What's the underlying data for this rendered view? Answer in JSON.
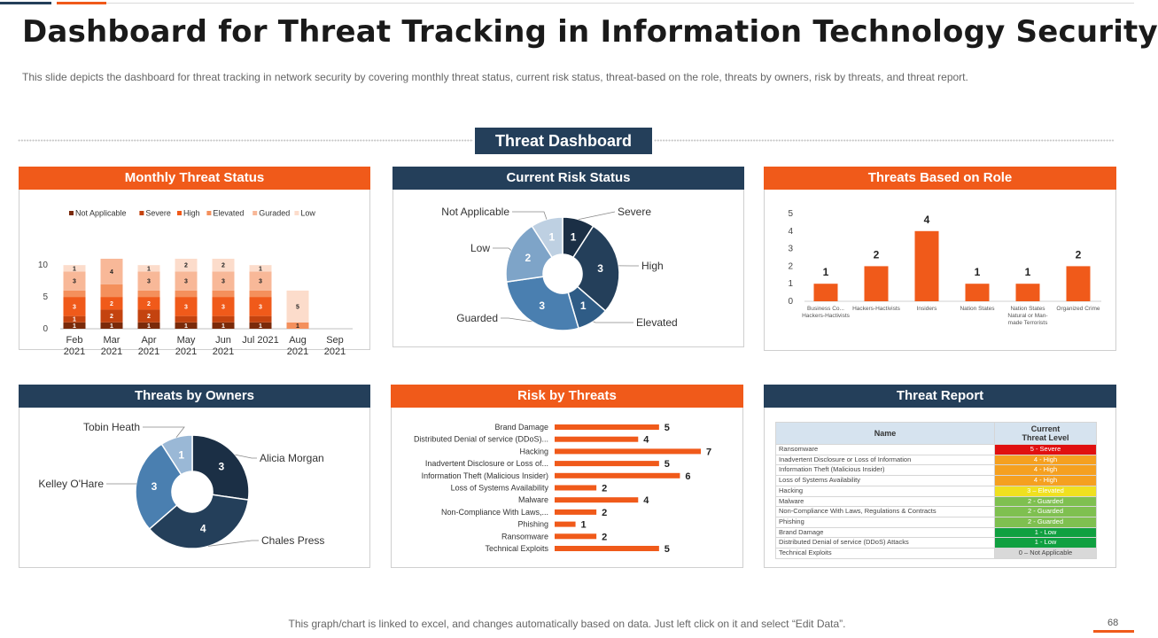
{
  "title": "Dashboard for Threat Tracking in Information Technology Security",
  "subtitle": "This slide depicts the dashboard  for threat tracking in network  security by covering  monthly threat status, current  risk status, threat-based  on the role, threats by owners, risk by threats, and threat report.",
  "dashboard_title": "Threat Dashboard",
  "footer": "This graph/chart is linked to excel,  and changes automatically based on data. Just left click on it and select “Edit Data”.",
  "page_number": "68",
  "colors": {
    "orange": "#f05a1a",
    "navy": "#243f5a"
  },
  "panels": {
    "monthly": "Monthly Threat Status",
    "risk": "Current Risk Status",
    "role": "Threats Based on Role",
    "owners": "Threats by Owners",
    "by_threats": "Risk by Threats",
    "report": "Threat Report"
  },
  "chart_data": [
    {
      "id": "monthly",
      "type": "bar",
      "stacked": true,
      "title": "Monthly Threat Status",
      "categories": [
        [
          "Feb",
          "2021"
        ],
        [
          "Mar",
          "2021"
        ],
        [
          "Apr",
          "2021"
        ],
        [
          "May",
          "2021"
        ],
        [
          "Jun",
          "2021"
        ],
        [
          "Jul 2021",
          ""
        ],
        [
          "Aug",
          "2021"
        ],
        [
          "Sep",
          "2021"
        ]
      ],
      "ylim": [
        0,
        11
      ],
      "yticks": [
        0,
        5,
        10
      ],
      "legend_position": "top",
      "series": [
        {
          "name": "Not Applicable",
          "color": "#7a2a0a",
          "values": [
            1,
            1,
            1,
            1,
            1,
            1,
            0,
            0
          ]
        },
        {
          "name": "Severe",
          "color": "#c4430f",
          "values": [
            1,
            2,
            2,
            1,
            1,
            1,
            0,
            0
          ]
        },
        {
          "name": "High",
          "color": "#f05a1a",
          "values": [
            3,
            2,
            2,
            3,
            3,
            3,
            0,
            0
          ]
        },
        {
          "name": "Elevated",
          "color": "#f4905c",
          "values": [
            1,
            2,
            1,
            1,
            1,
            1,
            1,
            0
          ]
        },
        {
          "name": "Guraded",
          "color": "#f8b898",
          "values": [
            3,
            4,
            3,
            3,
            3,
            3,
            0,
            0
          ]
        },
        {
          "name": "Low",
          "color": "#fcdccb",
          "values": [
            1,
            0,
            1,
            2,
            2,
            1,
            5,
            0
          ]
        }
      ],
      "labels": [
        [
          "1",
          "1",
          "3",
          "",
          "3",
          "1"
        ],
        [
          "1",
          "2",
          "2",
          "",
          "4",
          ""
        ],
        [
          "1",
          "2",
          "2",
          "",
          "3",
          "1"
        ],
        [
          "1",
          "",
          "3",
          "",
          "3",
          "2"
        ],
        [
          "1",
          "",
          "3",
          "",
          "3",
          "2"
        ],
        [
          "1",
          "",
          "3",
          "",
          "3",
          "1"
        ],
        [
          "",
          "",
          "",
          "1",
          "",
          "5"
        ],
        [
          "",
          "",
          "",
          "",
          "",
          ""
        ]
      ]
    },
    {
      "id": "risk",
      "type": "pie",
      "donut": true,
      "title": "Current Risk Status",
      "slices": [
        {
          "name": "Severe",
          "value": 1,
          "color": "#1b2f45",
          "label_pos": "right"
        },
        {
          "name": "High",
          "value": 3,
          "color": "#243f5a",
          "label_pos": "right"
        },
        {
          "name": "Elevated",
          "value": 1,
          "color": "#2f5c86",
          "label_pos": "right"
        },
        {
          "name": "Guarded",
          "value": 3,
          "color": "#4a7fb0",
          "label_pos": "left"
        },
        {
          "name": "Low",
          "value": 2,
          "color": "#7ea4c8",
          "label_pos": "left"
        },
        {
          "name": "Not Applicable",
          "value": 1,
          "color": "#bed0e2",
          "label_pos": "left"
        }
      ]
    },
    {
      "id": "role",
      "type": "bar",
      "title": "Threats Based on Role",
      "categories": [
        [
          "Business Co...",
          "Hackers-Hactivists"
        ],
        [
          "Hackers-Hactivists"
        ],
        [
          "Insiders"
        ],
        [
          "Nation States"
        ],
        [
          "Nation States",
          "Natural or Man-",
          "made Terrorists"
        ],
        [
          "Organized Crime"
        ]
      ],
      "values": [
        1,
        2,
        4,
        1,
        1,
        2
      ],
      "ylim": [
        0,
        5
      ],
      "yticks": [
        0,
        1,
        2,
        3,
        4,
        5
      ],
      "color": "#f05a1a"
    },
    {
      "id": "owners",
      "type": "pie",
      "donut": true,
      "title": "Threats by Owners",
      "slices": [
        {
          "name": "Alicia Morgan",
          "value": 3,
          "color": "#1b2f45"
        },
        {
          "name": "Chales Press",
          "value": 4,
          "color": "#243f5a"
        },
        {
          "name": "Kelley O'Hare",
          "value": 3,
          "color": "#4a7fb0"
        },
        {
          "name": "Tobin Heath",
          "value": 1,
          "color": "#9ab8d6"
        }
      ]
    },
    {
      "id": "by_threats",
      "type": "bar",
      "orientation": "horizontal",
      "title": "Risk by Threats",
      "categories": [
        "Brand Damage",
        "Distributed Denial of service (DDoS)...",
        "Hacking",
        "Inadvertent Disclosure or Loss of...",
        "Information Theft (Malicious Insider)",
        "Loss of Systems Availability",
        "Malware",
        "Non-Compliance With Laws,...",
        "Phishing",
        "Ransomware",
        "Technical Exploits"
      ],
      "values": [
        5,
        4,
        7,
        5,
        6,
        2,
        4,
        2,
        1,
        2,
        5
      ],
      "xlim": [
        0,
        7
      ],
      "color": "#f05a1a"
    },
    {
      "id": "report",
      "type": "table",
      "title": "Threat Report",
      "columns": [
        "Name",
        "Current\nThreat Level"
      ],
      "rows": [
        {
          "name": "Ransomware",
          "level": "5 - Severe",
          "color": "#e01010"
        },
        {
          "name": "Inadvertent  Disclosure or Loss of Information",
          "level": "4 - High",
          "color": "#f5a020"
        },
        {
          "name": "Information  Theft (Malicious Insider)",
          "level": "4 - High",
          "color": "#f5a020"
        },
        {
          "name": "Loss of Systems Availability",
          "level": "4 - High",
          "color": "#f5a020"
        },
        {
          "name": "Hacking",
          "level": "3 – Elevated",
          "color": "#f0e020"
        },
        {
          "name": "Malware",
          "level": "2 - Guarded",
          "color": "#7fc050"
        },
        {
          "name": "Non-Compliance With Laws,  Regulations & Contracts",
          "level": "2 - Guarded",
          "color": "#7fc050"
        },
        {
          "name": "Phishing",
          "level": "2 - Guarded",
          "color": "#7fc050"
        },
        {
          "name": "Brand Damage",
          "level": "1 - Low",
          "color": "#10a040"
        },
        {
          "name": "Distributed Denial of service (DDoS) Attacks",
          "level": "1 - Low",
          "color": "#10a040"
        },
        {
          "name": "Technical  Exploits",
          "level": "0 – Not Applicable",
          "color": "#d9d9d9"
        }
      ]
    }
  ]
}
